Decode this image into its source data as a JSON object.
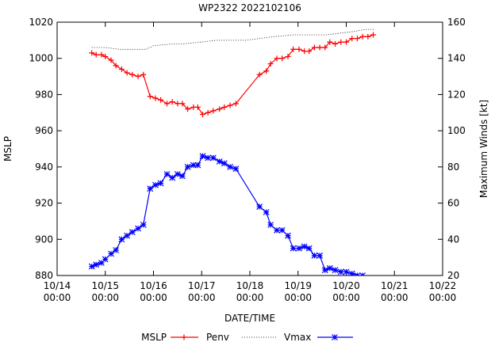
{
  "chart_data": {
    "type": "line",
    "title": "WP2322 2022102106",
    "xlabel": "DATE/TIME",
    "ylabel_left": "MSLP",
    "ylabel_right": "Maximum Winds [kt]",
    "xlim": [
      0,
      8
    ],
    "ylim_left": [
      880,
      1020
    ],
    "ylim_right": [
      20,
      160
    ],
    "grid": false,
    "legend_position": "bottom",
    "x_ticks": [
      {
        "v": 0,
        "l1": "10/14",
        "l2": "00:00"
      },
      {
        "v": 1,
        "l1": "10/15",
        "l2": "00:00"
      },
      {
        "v": 2,
        "l1": "10/16",
        "l2": "00:00"
      },
      {
        "v": 3,
        "l1": "10/17",
        "l2": "00:00"
      },
      {
        "v": 4,
        "l1": "10/18",
        "l2": "00:00"
      },
      {
        "v": 5,
        "l1": "10/19",
        "l2": "00:00"
      },
      {
        "v": 6,
        "l1": "10/20",
        "l2": "00:00"
      },
      {
        "v": 7,
        "l1": "10/21",
        "l2": "00:00"
      },
      {
        "v": 8,
        "l1": "10/22",
        "l2": "00:00"
      }
    ],
    "y_ticks_left": [
      880,
      900,
      920,
      940,
      960,
      980,
      1000,
      1020
    ],
    "y_ticks_right": [
      20,
      40,
      60,
      80,
      100,
      120,
      140,
      160
    ],
    "legend": [
      {
        "label": "MSLP",
        "key": "none"
      },
      {
        "label": "Penv",
        "key": "red-plus"
      },
      {
        "label": "Vmax",
        "key": "blue-star"
      }
    ],
    "series": [
      {
        "name": "Penv",
        "axis": "left",
        "color": "#ff0000",
        "marker": "plus",
        "style": "solid",
        "points": [
          [
            0.72,
            1003
          ],
          [
            0.81,
            1002
          ],
          [
            0.92,
            1002
          ],
          [
            1.0,
            1001
          ],
          [
            1.12,
            999
          ],
          [
            1.22,
            996
          ],
          [
            1.34,
            994
          ],
          [
            1.45,
            992
          ],
          [
            1.56,
            991
          ],
          [
            1.68,
            990
          ],
          [
            1.79,
            991
          ],
          [
            1.93,
            979
          ],
          [
            2.04,
            978
          ],
          [
            2.15,
            977
          ],
          [
            2.28,
            975
          ],
          [
            2.39,
            976
          ],
          [
            2.5,
            975
          ],
          [
            2.6,
            975
          ],
          [
            2.71,
            972
          ],
          [
            2.83,
            973
          ],
          [
            2.92,
            973
          ],
          [
            3.02,
            969
          ],
          [
            3.13,
            970
          ],
          [
            3.24,
            971
          ],
          [
            3.37,
            972
          ],
          [
            3.47,
            973
          ],
          [
            3.59,
            974
          ],
          [
            3.71,
            975
          ],
          [
            4.2,
            991
          ],
          [
            4.34,
            993
          ],
          [
            4.43,
            997
          ],
          [
            4.56,
            1000
          ],
          [
            4.67,
            1000
          ],
          [
            4.79,
            1001
          ],
          [
            4.9,
            1005
          ],
          [
            5.02,
            1005
          ],
          [
            5.13,
            1004
          ],
          [
            5.23,
            1004
          ],
          [
            5.34,
            1006
          ],
          [
            5.45,
            1006
          ],
          [
            5.56,
            1006
          ],
          [
            5.66,
            1009
          ],
          [
            5.77,
            1008
          ],
          [
            5.89,
            1009
          ],
          [
            6.0,
            1009
          ],
          [
            6.12,
            1011
          ],
          [
            6.23,
            1011
          ],
          [
            6.34,
            1012
          ],
          [
            6.45,
            1012
          ],
          [
            6.56,
            1013
          ]
        ]
      },
      {
        "name": "",
        "axis": "right",
        "color": "#000000",
        "marker": "none",
        "style": "dotted",
        "points": [
          [
            0.72,
            146
          ],
          [
            1.0,
            146
          ],
          [
            1.3,
            145
          ],
          [
            1.6,
            145
          ],
          [
            1.85,
            145
          ],
          [
            2.0,
            147
          ],
          [
            2.4,
            148
          ],
          [
            2.6,
            148
          ],
          [
            3.0,
            149
          ],
          [
            3.3,
            150
          ],
          [
            3.6,
            150
          ],
          [
            3.9,
            150
          ],
          [
            4.2,
            151
          ],
          [
            4.5,
            152
          ],
          [
            4.9,
            153
          ],
          [
            5.3,
            153
          ],
          [
            5.6,
            153
          ],
          [
            5.9,
            154
          ],
          [
            6.2,
            155
          ],
          [
            6.4,
            156
          ],
          [
            6.6,
            156
          ]
        ]
      },
      {
        "name": "Vmax",
        "axis": "right",
        "color": "#0000ff",
        "marker": "star",
        "style": "solid",
        "points": [
          [
            0.72,
            25
          ],
          [
            0.81,
            26
          ],
          [
            0.92,
            27
          ],
          [
            1.0,
            29
          ],
          [
            1.12,
            32
          ],
          [
            1.22,
            34
          ],
          [
            1.34,
            40
          ],
          [
            1.45,
            42
          ],
          [
            1.56,
            44
          ],
          [
            1.68,
            46
          ],
          [
            1.79,
            48
          ],
          [
            1.93,
            68
          ],
          [
            2.04,
            70
          ],
          [
            2.15,
            71
          ],
          [
            2.28,
            76
          ],
          [
            2.39,
            74
          ],
          [
            2.5,
            76
          ],
          [
            2.6,
            75
          ],
          [
            2.71,
            80
          ],
          [
            2.83,
            81
          ],
          [
            2.92,
            81
          ],
          [
            3.02,
            86
          ],
          [
            3.13,
            85
          ],
          [
            3.24,
            85
          ],
          [
            3.37,
            83
          ],
          [
            3.47,
            82
          ],
          [
            3.59,
            80
          ],
          [
            3.71,
            79
          ],
          [
            4.2,
            58
          ],
          [
            4.34,
            55
          ],
          [
            4.43,
            48
          ],
          [
            4.56,
            45
          ],
          [
            4.67,
            45
          ],
          [
            4.79,
            42
          ],
          [
            4.9,
            35
          ],
          [
            5.02,
            35
          ],
          [
            5.13,
            36
          ],
          [
            5.23,
            35
          ],
          [
            5.34,
            31
          ],
          [
            5.45,
            31
          ],
          [
            5.56,
            23
          ],
          [
            5.66,
            24
          ],
          [
            5.77,
            23
          ],
          [
            5.89,
            22
          ],
          [
            6.0,
            22
          ],
          [
            6.12,
            21
          ],
          [
            6.23,
            20
          ],
          [
            6.34,
            20
          ],
          [
            6.45,
            18
          ],
          [
            6.56,
            18
          ]
        ]
      }
    ]
  }
}
